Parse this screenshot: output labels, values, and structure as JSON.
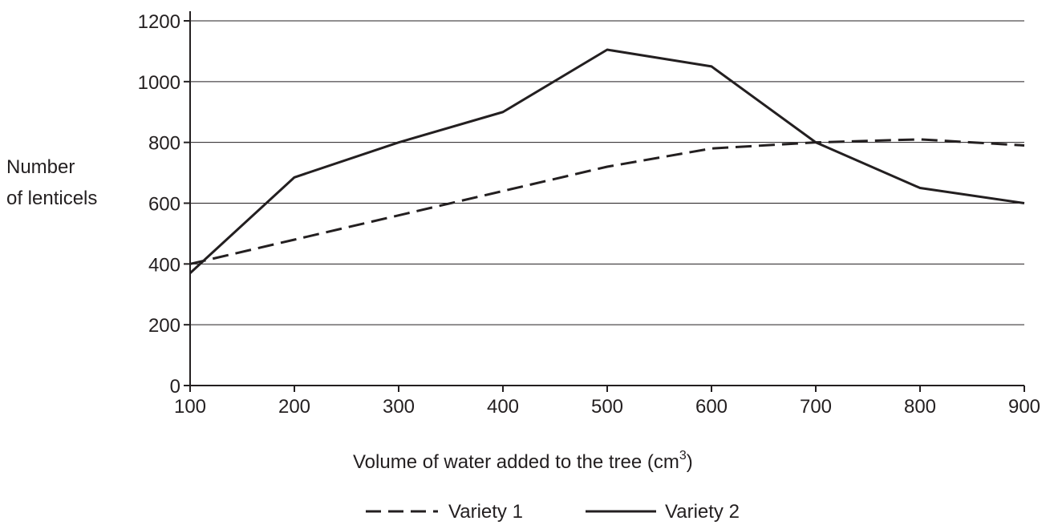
{
  "chart_data": {
    "type": "line",
    "title": "",
    "xlabel": "Volume of water added to the tree (cm",
    "xlabel_superscript": "3",
    "xlabel_suffix": ")",
    "ylabel_line1": "Number",
    "ylabel_line2": "of lenticels",
    "x": [
      100,
      200,
      300,
      400,
      500,
      600,
      700,
      800,
      900
    ],
    "xlim": [
      100,
      900
    ],
    "ylim": [
      0,
      1200
    ],
    "xticks": [
      "100",
      "200",
      "300",
      "400",
      "500",
      "600",
      "700",
      "800",
      "900"
    ],
    "yticks": [
      "0",
      "200",
      "400",
      "600",
      "800",
      "1000",
      "1200"
    ],
    "grid": "horizontal",
    "legend_position": "bottom-center",
    "series": [
      {
        "name": "Variety 1",
        "style": "dashed",
        "color": "#231f20",
        "values": [
          400,
          480,
          560,
          640,
          720,
          780,
          800,
          810,
          790
        ]
      },
      {
        "name": "Variety 2",
        "style": "solid",
        "color": "#231f20",
        "values": [
          370,
          685,
          800,
          900,
          1105,
          1050,
          800,
          650,
          600
        ]
      }
    ]
  }
}
